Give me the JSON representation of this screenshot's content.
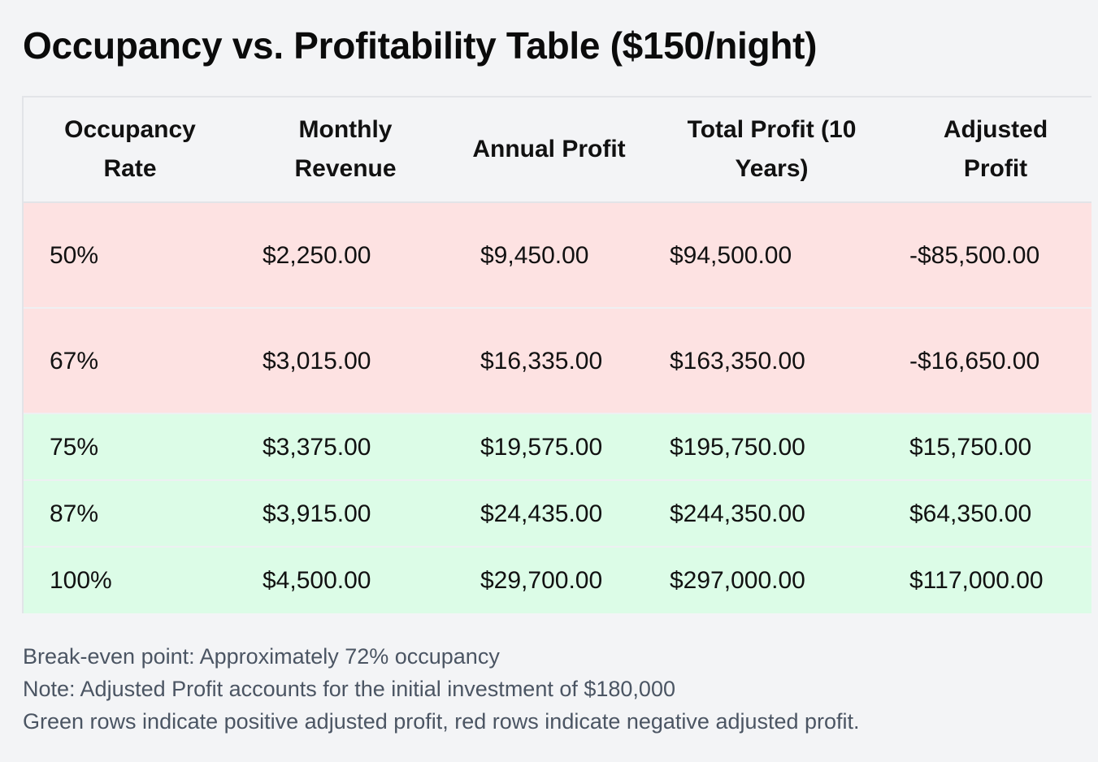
{
  "title": "Occupancy vs. Profitability Table ($150/night)",
  "colors": {
    "negative_row": "#fde2e2",
    "positive_row": "#dcfce7",
    "page_background": "#f3f4f6",
    "note_text": "#4b5563"
  },
  "table": {
    "headers": [
      "Occupancy Rate",
      "Monthly Revenue",
      "Annual Profit",
      "Total Profit (10 Years)",
      "Adjusted Profit"
    ],
    "rows": [
      {
        "occupancy": "50%",
        "monthly": "$2,250.00",
        "annual": "$9,450.00",
        "total": "$94,500.00",
        "adjusted": "-$85,500.00",
        "status": "negative"
      },
      {
        "occupancy": "67%",
        "monthly": "$3,015.00",
        "annual": "$16,335.00",
        "total": "$163,350.00",
        "adjusted": "-$16,650.00",
        "status": "negative"
      },
      {
        "occupancy": "75%",
        "monthly": "$3,375.00",
        "annual": "$19,575.00",
        "total": "$195,750.00",
        "adjusted": "$15,750.00",
        "status": "positive"
      },
      {
        "occupancy": "87%",
        "monthly": "$3,915.00",
        "annual": "$24,435.00",
        "total": "$244,350.00",
        "adjusted": "$64,350.00",
        "status": "positive"
      },
      {
        "occupancy": "100%",
        "monthly": "$4,500.00",
        "annual": "$29,700.00",
        "total": "$297,000.00",
        "adjusted": "$117,000.00",
        "status": "positive"
      }
    ]
  },
  "notes": [
    "Break-even point: Approximately 72% occupancy",
    "Note: Adjusted Profit accounts for the initial investment of $180,000",
    "Green rows indicate positive adjusted profit, red rows indicate negative adjusted profit."
  ]
}
